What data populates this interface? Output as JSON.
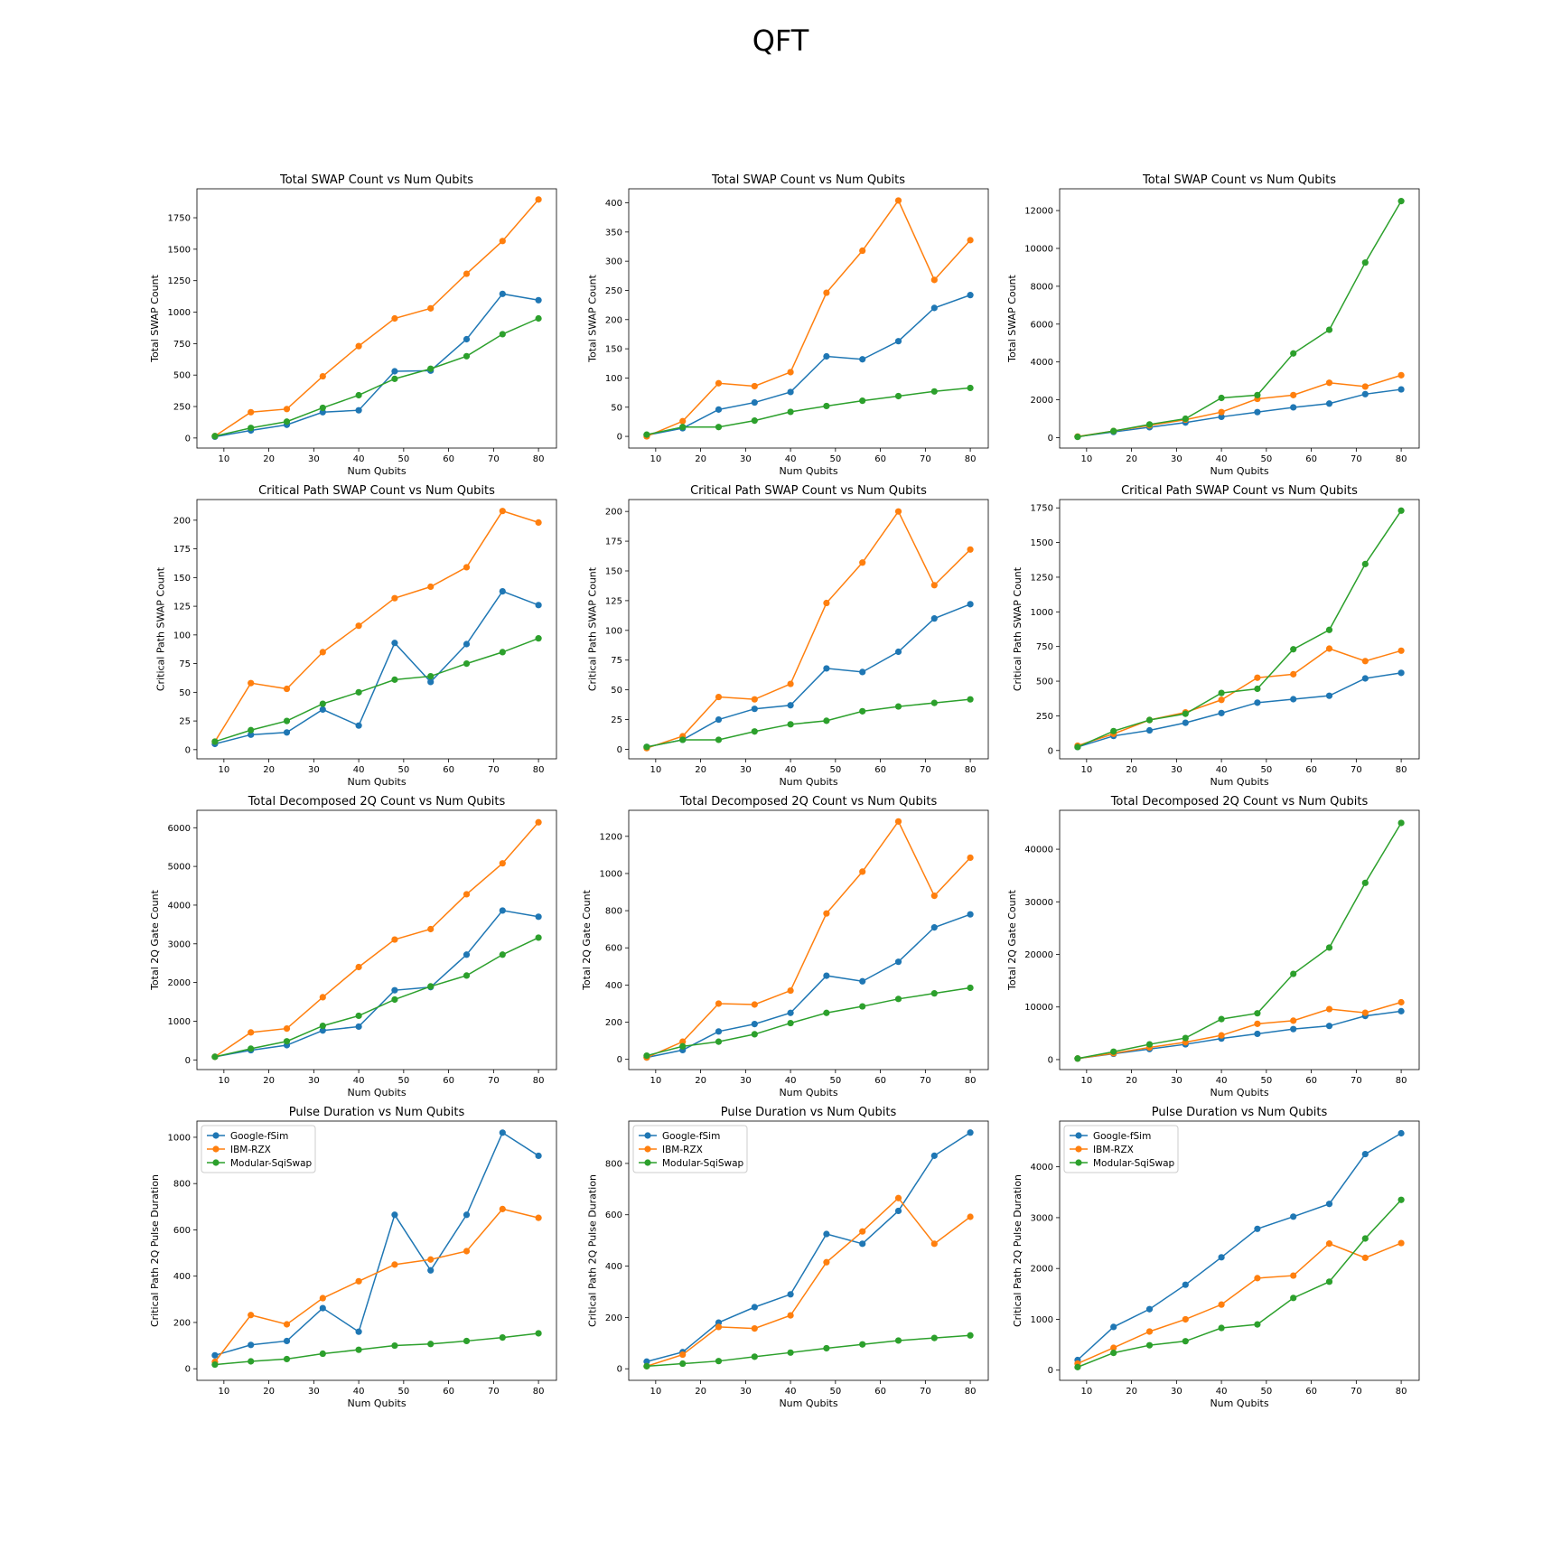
{
  "suptitle": "QFT",
  "x": [
    8,
    16,
    24,
    32,
    40,
    48,
    56,
    64,
    72,
    80
  ],
  "series_names": [
    "Google-fSim",
    "IBM-RZX",
    "Modular-SqiSwap"
  ],
  "colors": [
    "#1f77b4",
    "#ff7f0e",
    "#2ca02c"
  ],
  "chart_data": [
    {
      "type": "line",
      "title": "Total SWAP Count vs Num Qubits",
      "xlabel": "Num Qubits",
      "ylabel": "Total SWAP Count",
      "xlim": [
        4,
        84
      ],
      "ylim": [
        -80,
        1980
      ],
      "xticks": [
        10,
        20,
        30,
        40,
        50,
        60,
        70,
        80
      ],
      "yticks": [
        0,
        250,
        500,
        750,
        1000,
        1250,
        1500,
        1750
      ],
      "series": [
        {
          "values": [
            10,
            60,
            105,
            205,
            220,
            530,
            535,
            785,
            1145,
            1095
          ]
        },
        {
          "values": [
            15,
            205,
            230,
            490,
            730,
            950,
            1030,
            1305,
            1565,
            1895
          ]
        },
        {
          "values": [
            15,
            80,
            130,
            240,
            340,
            470,
            550,
            650,
            825,
            950
          ]
        }
      ]
    },
    {
      "type": "line",
      "title": "Total SWAP Count vs Num Qubits",
      "xlabel": "Num Qubits",
      "ylabel": "Total SWAP Count",
      "xlim": [
        4,
        84
      ],
      "ylim": [
        -20,
        424
      ],
      "xticks": [
        10,
        20,
        30,
        40,
        50,
        60,
        70,
        80
      ],
      "yticks": [
        0,
        50,
        100,
        150,
        200,
        250,
        300,
        350,
        400
      ],
      "series": [
        {
          "values": [
            2,
            14,
            46,
            58,
            76,
            137,
            132,
            163,
            220,
            242
          ]
        },
        {
          "values": [
            0,
            26,
            91,
            86,
            110,
            246,
            318,
            404,
            268,
            336
          ]
        },
        {
          "values": [
            3,
            16,
            16,
            27,
            42,
            52,
            61,
            69,
            77,
            83
          ]
        }
      ]
    },
    {
      "type": "line",
      "title": "Total SWAP Count vs Num Qubits",
      "xlabel": "Num Qubits",
      "ylabel": "Total SWAP Count",
      "xlim": [
        4,
        84
      ],
      "ylim": [
        -550,
        13150
      ],
      "xticks": [
        10,
        20,
        30,
        40,
        50,
        60,
        70,
        80
      ],
      "yticks": [
        0,
        2000,
        4000,
        6000,
        8000,
        10000,
        12000
      ],
      "series": [
        {
          "values": [
            50,
            300,
            550,
            800,
            1100,
            1350,
            1600,
            1800,
            2300,
            2550
          ]
        },
        {
          "values": [
            60,
            350,
            650,
            950,
            1350,
            2050,
            2250,
            2900,
            2700,
            3300
          ]
        },
        {
          "values": [
            40,
            350,
            700,
            1000,
            2100,
            2250,
            4450,
            5700,
            9250,
            12500
          ]
        }
      ]
    },
    {
      "type": "line",
      "title": "Critical Path SWAP Count vs Num Qubits",
      "xlabel": "Num Qubits",
      "ylabel": "Critical Path SWAP Count",
      "xlim": [
        4,
        84
      ],
      "ylim": [
        -8,
        218
      ],
      "xticks": [
        10,
        20,
        30,
        40,
        50,
        60,
        70,
        80
      ],
      "yticks": [
        0,
        25,
        50,
        75,
        100,
        125,
        150,
        175,
        200
      ],
      "series": [
        {
          "values": [
            5,
            13,
            15,
            35,
            21,
            93,
            59,
            92,
            138,
            126
          ]
        },
        {
          "values": [
            7,
            58,
            53,
            85,
            108,
            132,
            142,
            159,
            208,
            198
          ]
        },
        {
          "values": [
            7,
            17,
            25,
            40,
            50,
            61,
            64,
            75,
            85,
            97
          ]
        }
      ]
    },
    {
      "type": "line",
      "title": "Critical Path SWAP Count vs Num Qubits",
      "xlabel": "Num Qubits",
      "ylabel": "Critical Path SWAP Count",
      "xlim": [
        4,
        84
      ],
      "ylim": [
        -8,
        210
      ],
      "xticks": [
        10,
        20,
        30,
        40,
        50,
        60,
        70,
        80
      ],
      "yticks": [
        0,
        25,
        50,
        75,
        100,
        125,
        150,
        175,
        200
      ],
      "series": [
        {
          "values": [
            2,
            8,
            25,
            34,
            37,
            68,
            65,
            82,
            110,
            122
          ]
        },
        {
          "values": [
            1,
            11,
            44,
            42,
            55,
            123,
            157,
            200,
            138,
            168
          ]
        },
        {
          "values": [
            2,
            8,
            8,
            15,
            21,
            24,
            32,
            36,
            39,
            42
          ]
        }
      ]
    },
    {
      "type": "line",
      "title": "Critical Path SWAP Count vs Num Qubits",
      "xlabel": "Num Qubits",
      "ylabel": "Critical Path SWAP Count",
      "xlim": [
        4,
        84
      ],
      "ylim": [
        -60,
        1810
      ],
      "xticks": [
        10,
        20,
        30,
        40,
        50,
        60,
        70,
        80
      ],
      "yticks": [
        0,
        250,
        500,
        750,
        1000,
        1250,
        1500,
        1750
      ],
      "series": [
        {
          "values": [
            25,
            105,
            145,
            200,
            270,
            345,
            370,
            395,
            520,
            560
          ]
        },
        {
          "values": [
            35,
            120,
            220,
            275,
            365,
            525,
            550,
            735,
            645,
            720
          ]
        },
        {
          "values": [
            25,
            140,
            220,
            265,
            415,
            445,
            730,
            870,
            1345,
            1730
          ]
        }
      ]
    },
    {
      "type": "line",
      "title": "Total Decomposed 2Q Count vs Num Qubits",
      "xlabel": "Num Qubits",
      "ylabel": "Total 2Q Gate Count",
      "xlim": [
        4,
        84
      ],
      "ylim": [
        -250,
        6450
      ],
      "xticks": [
        10,
        20,
        30,
        40,
        50,
        60,
        70,
        80
      ],
      "yticks": [
        0,
        1000,
        2000,
        3000,
        4000,
        5000,
        6000
      ],
      "series": [
        {
          "values": [
            80,
            250,
            380,
            760,
            860,
            1800,
            1880,
            2720,
            3860,
            3700
          ]
        },
        {
          "values": [
            80,
            710,
            810,
            1620,
            2400,
            3110,
            3380,
            4280,
            5080,
            6140
          ]
        },
        {
          "values": [
            80,
            290,
            480,
            880,
            1140,
            1560,
            1900,
            2180,
            2720,
            3160
          ]
        }
      ]
    },
    {
      "type": "line",
      "title": "Total Decomposed 2Q Count vs Num Qubits",
      "xlabel": "Num Qubits",
      "ylabel": "Total 2Q Gate Count",
      "xlim": [
        4,
        84
      ],
      "ylim": [
        -55,
        1340
      ],
      "xticks": [
        10,
        20,
        30,
        40,
        50,
        60,
        70,
        80
      ],
      "yticks": [
        0,
        200,
        400,
        600,
        800,
        1000,
        1200
      ],
      "series": [
        {
          "values": [
            10,
            50,
            150,
            190,
            250,
            450,
            420,
            525,
            710,
            780
          ]
        },
        {
          "values": [
            10,
            95,
            300,
            295,
            370,
            785,
            1010,
            1280,
            880,
            1085
          ]
        },
        {
          "values": [
            20,
            70,
            95,
            135,
            195,
            250,
            285,
            325,
            355,
            385
          ]
        }
      ]
    },
    {
      "type": "line",
      "title": "Total Decomposed 2Q Count vs Num Qubits",
      "xlabel": "Num Qubits",
      "ylabel": "Total 2Q Gate Count",
      "xlim": [
        4,
        84
      ],
      "ylim": [
        -1900,
        47400
      ],
      "xticks": [
        10,
        20,
        30,
        40,
        50,
        60,
        70,
        80
      ],
      "yticks": [
        0,
        10000,
        20000,
        30000,
        40000
      ],
      "series": [
        {
          "values": [
            200,
            1100,
            2000,
            2900,
            4000,
            4900,
            5800,
            6400,
            8300,
            9200
          ]
        },
        {
          "values": [
            200,
            1200,
            2300,
            3300,
            4600,
            6800,
            7400,
            9600,
            8900,
            10900
          ]
        },
        {
          "values": [
            200,
            1500,
            2900,
            4100,
            7700,
            8800,
            16300,
            21300,
            33600,
            45000
          ]
        }
      ]
    },
    {
      "type": "line",
      "title": "Pulse Duration vs Num Qubits",
      "xlabel": "Num Qubits",
      "ylabel": "Critical Path 2Q Pulse Duration",
      "xlim": [
        4,
        84
      ],
      "ylim": [
        -50,
        1070
      ],
      "xticks": [
        10,
        20,
        30,
        40,
        50,
        60,
        70,
        80
      ],
      "yticks": [
        0,
        200,
        400,
        600,
        800,
        1000
      ],
      "legend": "upper left",
      "series": [
        {
          "values": [
            58,
            103,
            120,
            262,
            160,
            665,
            425,
            665,
            1020,
            920
          ]
        },
        {
          "values": [
            30,
            232,
            192,
            305,
            378,
            450,
            472,
            508,
            690,
            652
          ]
        },
        {
          "values": [
            18,
            32,
            42,
            65,
            82,
            100,
            107,
            120,
            135,
            153
          ]
        }
      ]
    },
    {
      "type": "line",
      "title": "Pulse Duration vs Num Qubits",
      "xlabel": "Num Qubits",
      "ylabel": "Critical Path 2Q Pulse Duration",
      "xlim": [
        4,
        84
      ],
      "ylim": [
        -45,
        965
      ],
      "xticks": [
        10,
        20,
        30,
        40,
        50,
        60,
        70,
        80
      ],
      "yticks": [
        0,
        200,
        400,
        600,
        800
      ],
      "legend": "upper left",
      "series": [
        {
          "values": [
            28,
            65,
            180,
            240,
            290,
            525,
            487,
            615,
            830,
            920
          ]
        },
        {
          "values": [
            10,
            55,
            163,
            157,
            208,
            415,
            535,
            665,
            487,
            592
          ]
        },
        {
          "values": [
            10,
            20,
            30,
            47,
            63,
            80,
            95,
            110,
            120,
            130
          ]
        }
      ]
    },
    {
      "type": "line",
      "title": "Pulse Duration vs Num Qubits",
      "xlabel": "Num Qubits",
      "ylabel": "Critical Path 2Q Pulse Duration",
      "xlim": [
        4,
        84
      ],
      "ylim": [
        -200,
        4900
      ],
      "xticks": [
        10,
        20,
        30,
        40,
        50,
        60,
        70,
        80
      ],
      "yticks": [
        0,
        1000,
        2000,
        3000,
        4000
      ],
      "legend": "upper left",
      "series": [
        {
          "values": [
            200,
            850,
            1200,
            1680,
            2220,
            2780,
            3020,
            3270,
            4250,
            4660
          ]
        },
        {
          "values": [
            130,
            440,
            760,
            1000,
            1290,
            1810,
            1860,
            2490,
            2210,
            2500
          ]
        },
        {
          "values": [
            60,
            340,
            490,
            570,
            830,
            900,
            1420,
            1740,
            2590,
            3350
          ]
        }
      ]
    }
  ]
}
